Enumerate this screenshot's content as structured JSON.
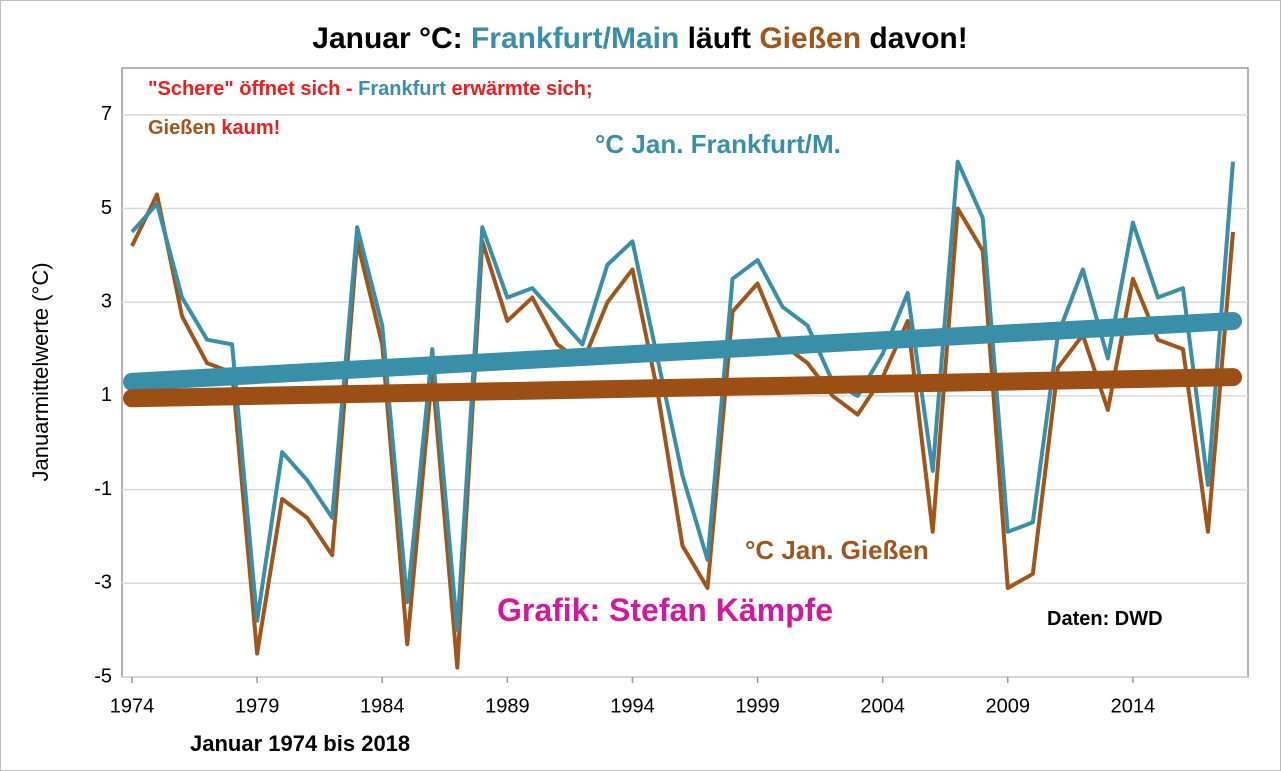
{
  "chart_data": {
    "type": "line",
    "title": [
      {
        "text": "Januar °C: ",
        "color": "#000000"
      },
      {
        "text": "Frankfurt/Main",
        "color": "#3a8fa8"
      },
      {
        "text": " läuft ",
        "color": "#000000"
      },
      {
        "text": "Gießen",
        "color": "#a0561a"
      },
      {
        "text": " davon!",
        "color": "#000000"
      }
    ],
    "y_label": "Januarmittelwerte (°C)",
    "x_label": "Januar 1974 bis 2018",
    "annotations": [
      {
        "parts": [
          {
            "text": "\"Schere\" öffnet sich - ",
            "color": "#ee1c1c"
          },
          {
            "text": "Frankfurt",
            "color": "#3a8fa8"
          },
          {
            "text": " erwärmte sich;",
            "color": "#ee1c1c"
          }
        ]
      },
      {
        "parts": [
          {
            "text": "Gießen",
            "color": "#a0561a"
          },
          {
            "text": " kaum!",
            "color": "#ee1c1c"
          }
        ]
      },
      {
        "parts": [
          {
            "text": "Grafik: Stefan Kämpfe",
            "color": "#d4189c"
          }
        ]
      },
      {
        "parts": [
          {
            "text": "Daten: DWD",
            "color": "#000000"
          }
        ]
      }
    ],
    "x": [
      1974,
      1975,
      1976,
      1977,
      1978,
      1979,
      1980,
      1981,
      1982,
      1983,
      1984,
      1985,
      1986,
      1987,
      1988,
      1989,
      1990,
      1991,
      1992,
      1993,
      1994,
      1995,
      1996,
      1997,
      1998,
      1999,
      2000,
      2001,
      2002,
      2003,
      2004,
      2005,
      2006,
      2007,
      2008,
      2009,
      2010,
      2011,
      2012,
      2013,
      2014,
      2015,
      2016,
      2017,
      2018
    ],
    "series": [
      {
        "name": "°C Jan. Frankfurt/M.",
        "color": "#3a8fa8",
        "values": [
          4.5,
          5.1,
          3.1,
          2.2,
          2.1,
          -3.8,
          -0.2,
          -0.8,
          -1.6,
          4.6,
          2.5,
          -3.4,
          2.0,
          -4.0,
          4.6,
          3.1,
          3.3,
          2.7,
          2.1,
          3.8,
          4.3,
          1.8,
          -0.7,
          -2.5,
          3.5,
          3.9,
          2.9,
          2.5,
          1.3,
          1.0,
          1.9,
          3.2,
          -0.6,
          6.0,
          4.8,
          -1.9,
          -1.7,
          2.3,
          3.7,
          1.8,
          4.7,
          3.1,
          3.3,
          -0.9,
          6.0
        ]
      },
      {
        "name": "°C Jan. Gießen",
        "color": "#a0561a",
        "values": [
          4.2,
          5.3,
          2.7,
          1.7,
          1.5,
          -4.5,
          -1.2,
          -1.6,
          -2.4,
          4.3,
          2.1,
          -4.3,
          1.5,
          -4.8,
          4.3,
          2.6,
          3.1,
          2.1,
          1.7,
          3.0,
          3.7,
          1.1,
          -2.2,
          -3.1,
          2.8,
          3.4,
          2.1,
          1.7,
          1.0,
          0.6,
          1.4,
          2.6,
          -1.9,
          5.0,
          4.1,
          -3.1,
          -2.8,
          1.6,
          2.3,
          0.7,
          3.5,
          2.2,
          2.0,
          -1.9,
          4.5
        ]
      }
    ],
    "trend_lines": [
      {
        "color": "#3a8fa8",
        "x": [
          1974,
          2018
        ],
        "values": [
          1.3,
          2.6
        ]
      },
      {
        "color": "#9b4f15",
        "x": [
          1974,
          2018
        ],
        "values": [
          0.95,
          1.4
        ]
      }
    ],
    "xlim": [
      1973.6,
      2018.6
    ],
    "ylim": [
      -5,
      8
    ],
    "xticks": [
      1974,
      1979,
      1984,
      1989,
      1994,
      1999,
      2004,
      2009,
      2014
    ],
    "yticks": [
      -5,
      -3,
      -1,
      1,
      3,
      5,
      7
    ],
    "grid": true
  }
}
